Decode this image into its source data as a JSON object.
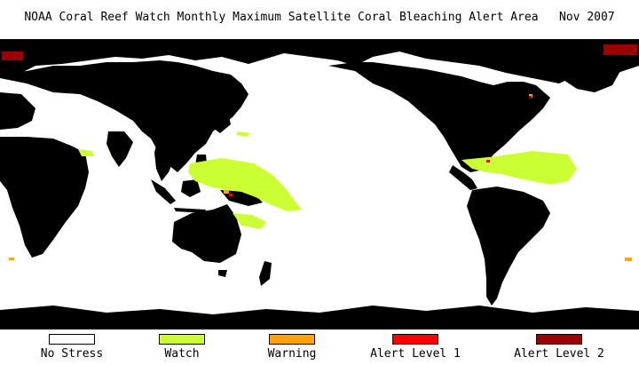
{
  "title": "NOAA Coral Reef Watch Monthly Maximum Satellite Coral Bleaching Alert Area   Nov 2007",
  "map": {
    "ocean_color": "#ffffff",
    "land_color": "#000000"
  },
  "legend": [
    {
      "label": "No Stress",
      "color": "#ffffff"
    },
    {
      "label": "Watch",
      "color": "#ccff33"
    },
    {
      "label": "Warning",
      "color": "#ffa500"
    },
    {
      "label": "Alert Level 1",
      "color": "#ff0000"
    },
    {
      "label": "Alert Level 2",
      "color": "#990000"
    }
  ]
}
